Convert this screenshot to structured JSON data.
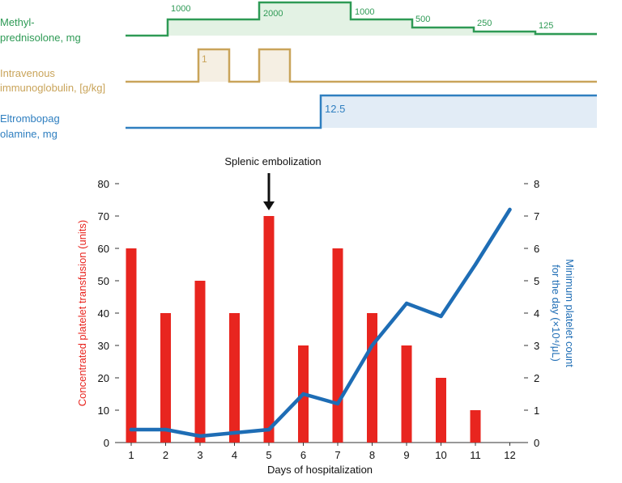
{
  "colors": {
    "steroid": "#2e9a55",
    "steroid_fill": "#e3f2e4",
    "ivig": "#c9a45a",
    "ivig_fill": "#f5efe3",
    "eltrombopag": "#2f7fc0",
    "eltrombopag_fill": "#e2ecf6",
    "bars": "#e8251f",
    "platelet_line": "#1e6db5",
    "axis": "#333333",
    "arrow": "#111111"
  },
  "drugs": {
    "methylprednisolone": {
      "label_lines": [
        "Methyl-",
        "prednisolone, mg"
      ],
      "doses": [
        "1000",
        "2000",
        "1000",
        "500",
        "250",
        "125"
      ]
    },
    "ivig": {
      "label_lines": [
        "Intravenous",
        "immunoglobulin, [g/kg]"
      ],
      "dose": "1"
    },
    "eltrombopag": {
      "label_lines": [
        "Eltrombopag",
        "olamine, mg"
      ],
      "dose": "12.5"
    }
  },
  "annotation": {
    "text": "Splenic embolization",
    "day": 5
  },
  "chart_data": {
    "type": "bar",
    "categories": [
      "1",
      "2",
      "3",
      "4",
      "5",
      "6",
      "7",
      "8",
      "9",
      "10",
      "11",
      "12"
    ],
    "series": [
      {
        "name": "Concentrated platelet transfusion (units)",
        "type": "bar",
        "axis": "left",
        "values": [
          60,
          40,
          50,
          40,
          70,
          30,
          60,
          40,
          30,
          20,
          10,
          0
        ]
      },
      {
        "name": "Minimum platelet count for the day",
        "type": "line",
        "axis": "right",
        "values": [
          0.4,
          0.4,
          0.2,
          0.3,
          0.4,
          1.5,
          1.2,
          3.0,
          4.3,
          3.9,
          5.5,
          7.2
        ]
      }
    ],
    "xlabel": "Days of hospitalization",
    "ylabel": "Concentrated platelet transfusion (units)",
    "ylabel_right_lines": [
      "Minimum platelet count",
      "for the day (×10⁴/μL)"
    ],
    "ylim": [
      0,
      80
    ],
    "y_ticks": [
      "0",
      "10",
      "20",
      "30",
      "40",
      "50",
      "60",
      "70",
      "80"
    ],
    "ylim_right": [
      0,
      8
    ],
    "y_ticks_right": [
      "0",
      "1",
      "2",
      "3",
      "4",
      "5",
      "6",
      "7",
      "8"
    ]
  }
}
